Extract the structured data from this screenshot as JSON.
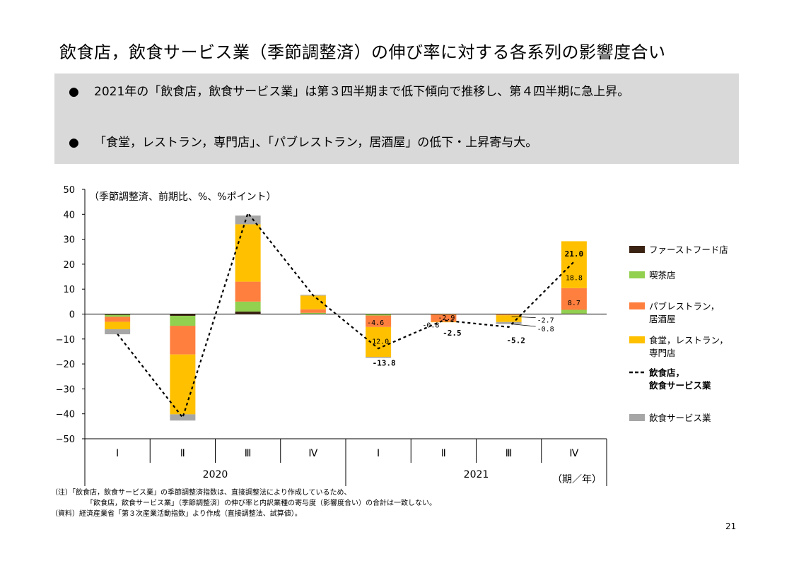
{
  "title": "飲食店，飲食サービス業（季節調整済）の伸び率に対する各系列の影響度合い",
  "bullets": [
    "2021年の「飲食店，飲食サービス業」は第３四半期まで低下傾向で推移し、第４四半期に急上昇。",
    "「食堂，レストラン，専門店」、「パブレストラン，居酒屋」の低下・上昇寄与大。"
  ],
  "bullet_symbol": "●",
  "chart_data": {
    "type": "bar",
    "stacked": true,
    "unit_note": "（季節調整済、前期比、%、%ポイント）",
    "quarters": [
      "Ⅰ",
      "Ⅱ",
      "Ⅲ",
      "Ⅳ",
      "Ⅰ",
      "Ⅱ",
      "Ⅲ",
      "Ⅳ"
    ],
    "years": [
      {
        "label": "2020",
        "span": 4
      },
      {
        "label": "2021",
        "span": 4
      }
    ],
    "x_unit": "（期／年）",
    "ylim": [
      -50,
      50
    ],
    "yticks": [
      50,
      40,
      30,
      20,
      10,
      0,
      -10,
      -20,
      -30,
      -40,
      -50
    ],
    "ytick_labels": [
      "50",
      "40",
      "30",
      "20",
      "10",
      "0",
      "−10",
      "−20",
      "−30",
      "−40",
      "−50"
    ],
    "series": [
      {
        "name": "ファーストフード店",
        "color": "#3b2314",
        "values": [
          -0.3,
          -0.7,
          1.0,
          0.1,
          -0.1,
          -0.1,
          -0.1,
          0.2
        ]
      },
      {
        "name": "喫茶店",
        "color": "#92d050",
        "values": [
          -0.8,
          -4.0,
          4.0,
          0.4,
          -0.5,
          -0.1,
          -0.1,
          1.5
        ]
      },
      {
        "name": "パブレストラン，居酒屋",
        "color": "#ff7f3f",
        "values": [
          -2.0,
          -11.5,
          8.0,
          1.4,
          -4.6,
          -2.9,
          -0.3,
          8.7
        ]
      },
      {
        "name": "食堂，レストラン，専門店",
        "color": "#ffc000",
        "values": [
          -3.0,
          -24.0,
          23.0,
          5.5,
          -12.0,
          -0.2,
          -2.7,
          18.8
        ]
      },
      {
        "name": "飲食サービス業",
        "color": "#a6a6a6",
        "values": [
          -2.0,
          -2.5,
          3.5,
          0.3,
          -0.4,
          0.0,
          -0.8,
          0.0
        ]
      }
    ],
    "total_line": {
      "name": "飲食店，飲食サービス業",
      "values": [
        -8.0,
        -41.5,
        40.5,
        7.5,
        -13.8,
        -2.5,
        -5.2,
        21.0
      ],
      "style": "dashed",
      "color": "#000000"
    },
    "legend": [
      {
        "label": "ファーストフード店",
        "color": "#3b2314",
        "kind": "box"
      },
      {
        "label": "喫茶店",
        "color": "#92d050",
        "kind": "box"
      },
      {
        "label": "パブレストラン，\n居酒屋",
        "color": "#ff7f3f",
        "kind": "box"
      },
      {
        "label": "食堂，レストラン，\n専門店",
        "color": "#ffc000",
        "kind": "box"
      },
      {
        "label": "飲食店，\n飲食サービス業",
        "color": "#000000",
        "kind": "line",
        "bold": true
      },
      {
        "label": "飲食サービス業",
        "color": "#a6a6a6",
        "kind": "box"
      }
    ],
    "legend_position": "right",
    "annotations": [
      {
        "text": "-4.6",
        "q": 4,
        "y": -3.2,
        "dx": -4,
        "anchor": "middle",
        "size": 10,
        "bold": false
      },
      {
        "text": "-12.0",
        "q": 4,
        "y": -10.8,
        "dx": 0,
        "anchor": "middle",
        "size": 10,
        "bold": false
      },
      {
        "text": "-13.8",
        "q": 4,
        "y": -19.5,
        "dx": 8,
        "anchor": "middle",
        "size": 11,
        "bold": true
      },
      {
        "text": "-0.8",
        "q": 5,
        "y": -4.2,
        "dx": -18,
        "anchor": "middle",
        "size": 10,
        "bold": false
      },
      {
        "text": "-2.9",
        "q": 5,
        "y": -1.3,
        "dx": 4,
        "anchor": "middle",
        "size": 10,
        "bold": false
      },
      {
        "text": "-2.5",
        "q": 5,
        "y": -7.5,
        "dx": 12,
        "anchor": "middle",
        "size": 11,
        "bold": true
      },
      {
        "text": "-2.7",
        "q": 6,
        "y": -2.3,
        "dx": 40,
        "anchor": "start",
        "size": 10,
        "bold": false
      },
      {
        "text": "-0.8",
        "q": 6,
        "y": -5.8,
        "dx": 40,
        "anchor": "start",
        "size": 10,
        "bold": false
      },
      {
        "text": "-5.2",
        "q": 6,
        "y": -10.5,
        "dx": 10,
        "anchor": "middle",
        "size": 11,
        "bold": true
      },
      {
        "text": "21.0",
        "q": 7,
        "y": 24.2,
        "dx": 0,
        "anchor": "middle",
        "size": 11,
        "bold": true
      },
      {
        "text": "18.8",
        "q": 7,
        "y": 14.8,
        "dx": 0,
        "anchor": "middle",
        "size": 10,
        "bold": false
      },
      {
        "text": "8.7",
        "q": 7,
        "y": 4.7,
        "dx": 0,
        "anchor": "middle",
        "size": 10,
        "bold": false
      }
    ]
  },
  "footnotes": [
    "（注）「飲食店，飲食サービス業」の季節調整済指数は、直接調整法により作成しているため、",
    "「飲食店，飲食サービス業」（季節調整済）の伸び率と内訳業種の寄与度（影響度合い）の合計は一致しない。",
    "（資料）経済産業省「第３次産業活動指数」より作成（直接調整法、試算値）。"
  ],
  "page_number": "21"
}
